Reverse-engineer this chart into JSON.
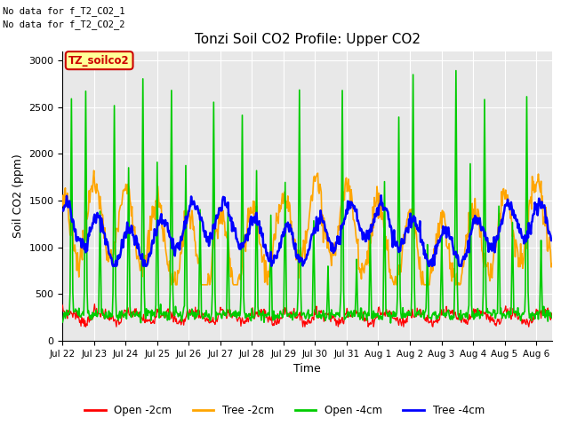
{
  "title": "Tonzi Soil CO2 Profile: Upper CO2",
  "xlabel": "Time",
  "ylabel": "Soil CO2 (ppm)",
  "ylim": [
    0,
    3100
  ],
  "yticks": [
    0,
    500,
    1000,
    1500,
    2000,
    2500,
    3000
  ],
  "background_color": "#e8e8e8",
  "plot_bg_color": "#e8e8e8",
  "fig_bg_color": "#ffffff",
  "legend_labels": [
    "Open -2cm",
    "Tree -2cm",
    "Open -4cm",
    "Tree -4cm"
  ],
  "legend_colors": [
    "#ff0000",
    "#ffa500",
    "#00cc00",
    "#0000ff"
  ],
  "no_data_text": [
    "No data for f_T2_CO2_1",
    "No data for f_T2_CO2_2"
  ],
  "box_label": "TZ_soilco2",
  "box_color": "#ffff99",
  "box_text_color": "#cc0000",
  "n_points": 720,
  "xtick_labels": [
    "Jul 22",
    "Jul 23",
    "Jul 24",
    "Jul 25",
    "Jul 26",
    "Jul 27",
    "Jul 28",
    "Jul 29",
    "Jul 30",
    "Jul 31",
    "Aug 1",
    "Aug 2",
    "Aug 3",
    "Aug 4",
    "Aug 5",
    "Aug 6"
  ],
  "xtick_positions": [
    0,
    1,
    2,
    3,
    4,
    5,
    6,
    7,
    8,
    9,
    10,
    11,
    12,
    13,
    14,
    15
  ]
}
